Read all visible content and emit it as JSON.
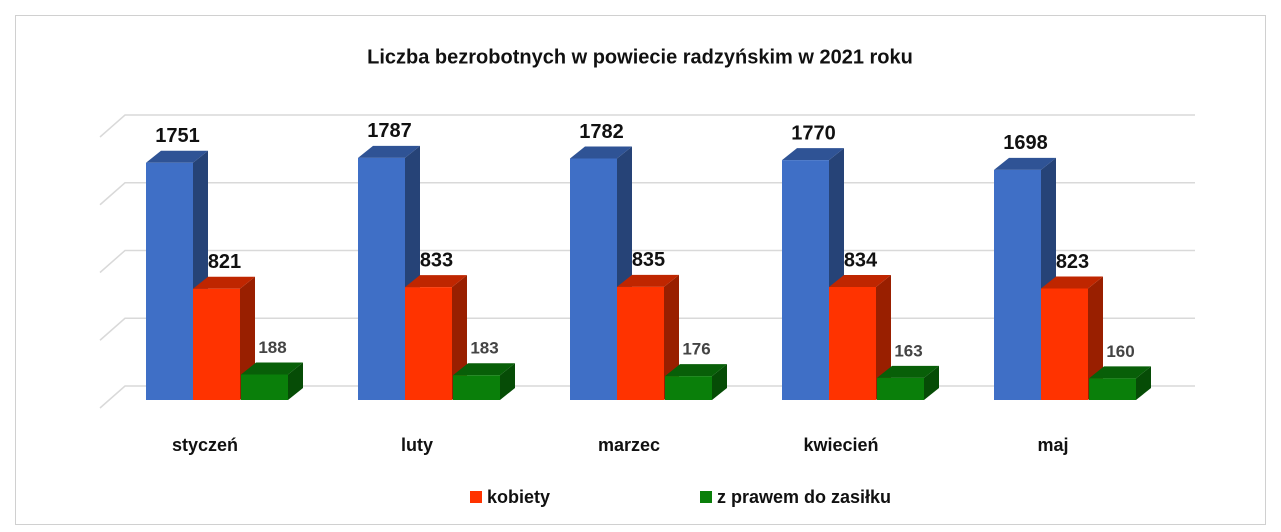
{
  "chart_data": {
    "type": "bar3d",
    "title": "Liczba bezrobotnych w powiecie radzyńskim w  2021  roku",
    "categories": [
      "styczeń",
      "luty",
      "marzec",
      "kwiecień",
      "maj"
    ],
    "series": [
      {
        "color": "#3f6fc6",
        "values": [
          1751,
          1787,
          1782,
          1770,
          1698
        ]
      },
      {
        "name": "kobiety",
        "color": "#ff3300",
        "values": [
          821,
          833,
          835,
          834,
          823
        ]
      },
      {
        "name": "z prawem do zasiłku",
        "color": "#0a7f0a",
        "values": [
          188,
          183,
          176,
          163,
          160
        ]
      }
    ],
    "ylim": [
      0,
      2000
    ],
    "yticks": [
      0,
      500,
      1000,
      1500,
      2000
    ],
    "grid": true,
    "legend": "bottom"
  }
}
